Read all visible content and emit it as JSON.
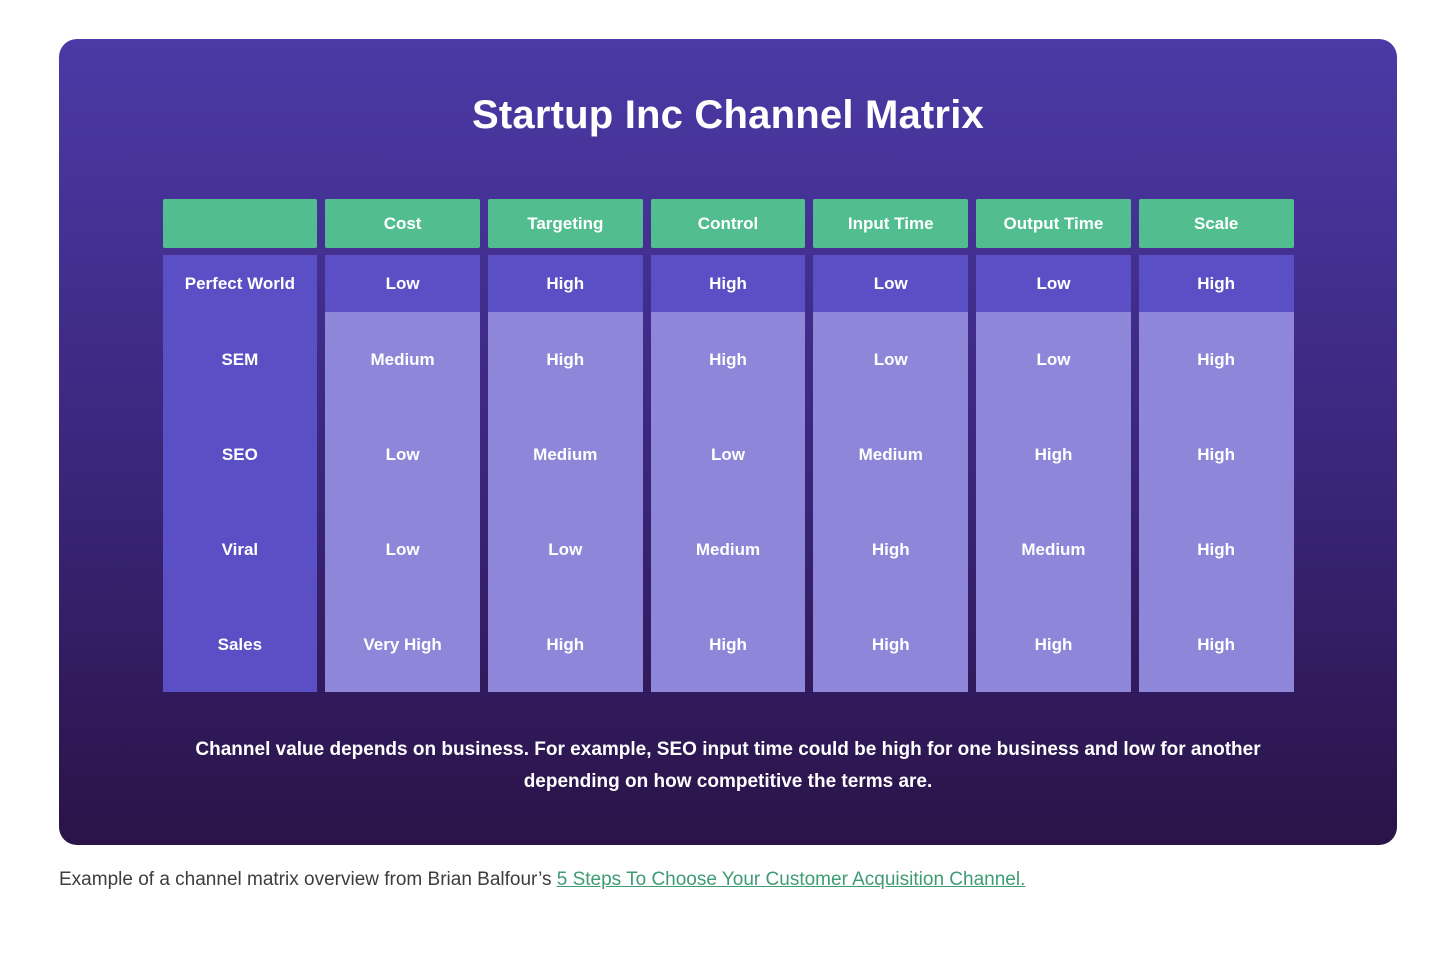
{
  "page": {
    "title": "Startup Inc Channel Matrix",
    "caption": "Channel value depends on business. For example, SEO input time could be high for one business and low for another depending on how competitive the terms are.",
    "footer": {
      "prefix": "Example of a channel matrix overview from Brian Balfour’s ",
      "link_text": "5 Steps To Choose Your Customer Acquisition Channel."
    }
  },
  "chart_data": {
    "type": "table",
    "title": "Startup Inc Channel Matrix",
    "columns": [
      "Cost",
      "Targeting",
      "Control",
      "Input Time",
      "Output Time",
      "Scale"
    ],
    "rows": [
      {
        "label": "Perfect World",
        "values": [
          "Low",
          "High",
          "High",
          "Low",
          "Low",
          "High"
        ]
      },
      {
        "label": "SEM",
        "values": [
          "Medium",
          "High",
          "High",
          "Low",
          "Low",
          "High"
        ]
      },
      {
        "label": "SEO",
        "values": [
          "Low",
          "Medium",
          "Low",
          "Medium",
          "High",
          "High"
        ]
      },
      {
        "label": "Viral",
        "values": [
          "Low",
          "Low",
          "Medium",
          "High",
          "Medium",
          "High"
        ]
      },
      {
        "label": "Sales",
        "values": [
          "Very High",
          "High",
          "High",
          "High",
          "High",
          "High"
        ]
      }
    ],
    "legend_position": "none",
    "grid": false
  },
  "colors": {
    "header_green": "#52be8f",
    "purple_medium": "#5b4fc6",
    "purple_light": "#8e87d9",
    "card_gradient_top": "#4b3aa6",
    "card_gradient_bottom": "#2a1347",
    "link_green": "#3e9b76",
    "text_white": "#ffffff"
  }
}
